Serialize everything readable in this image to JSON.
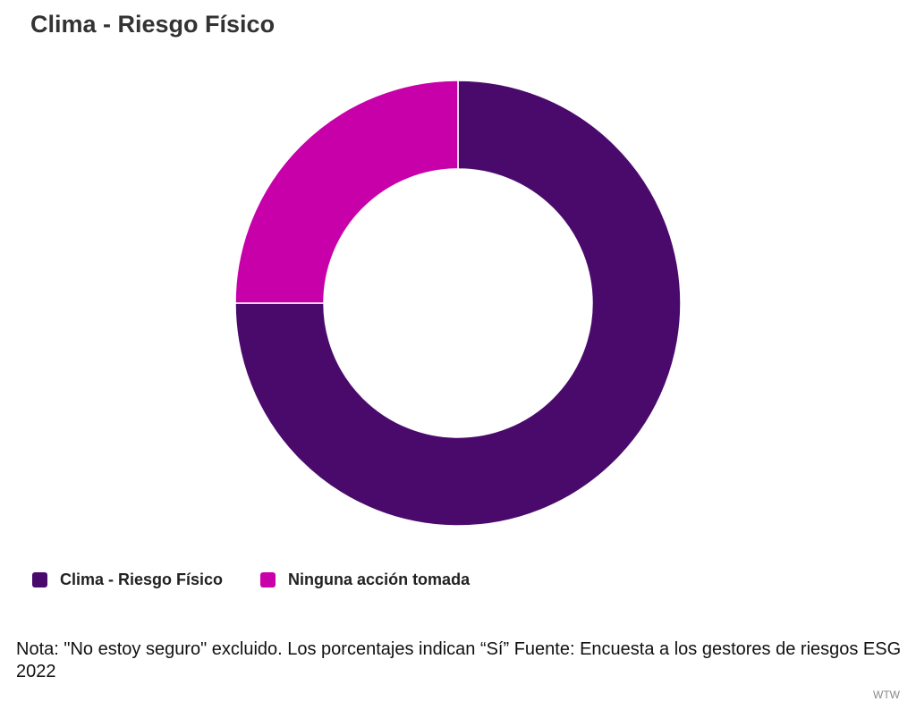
{
  "chart_data": {
    "type": "donut",
    "title": "Clima - Riesgo Físico",
    "categories": [
      "Clima - Riesgo Físico",
      "Ninguna acción tomada"
    ],
    "values": [
      75,
      25
    ],
    "colors": [
      "#4a0a6c",
      "#c800a9"
    ],
    "note": "Nota: \"No estoy seguro\" excluido. Los porcentajes indican “Sí” Fuente: Encuesta a los gestores de riesgos ESG 2022",
    "credit": "WTW"
  }
}
